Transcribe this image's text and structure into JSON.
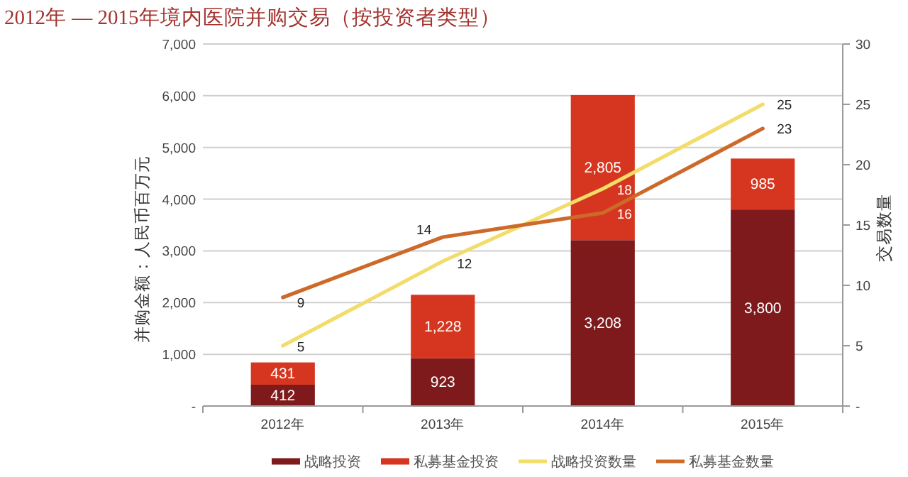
{
  "chart_data": {
    "type": "bar",
    "title": "2012年 — 2015年境内医院并购交易（按投资者类型）",
    "ylabel": "并购金额：人民币百万元",
    "y2label": "交易数量",
    "categories": [
      "2012年",
      "2013年",
      "2014年",
      "2015年"
    ],
    "stacked": true,
    "series": [
      {
        "name": "战略投资",
        "color": "#7e1a1c",
        "values": [
          412,
          923,
          3208,
          3800
        ],
        "value_labels": [
          "412",
          "923",
          "3,208",
          "3,800"
        ]
      },
      {
        "name": "私募基金投资",
        "color": "#d6361f",
        "values": [
          431,
          1228,
          2805,
          985
        ],
        "value_labels": [
          "431",
          "1,228",
          "2,805",
          "985"
        ]
      },
      {
        "name": "战略投资数量",
        "type": "line",
        "axis": "y2",
        "color": "#f2dc6a",
        "values": [
          5,
          12,
          18,
          25
        ],
        "value_labels": [
          "5",
          "12",
          "18",
          "25"
        ]
      },
      {
        "name": "私募基金数量",
        "type": "line",
        "axis": "y2",
        "color": "#cd6a2a",
        "values": [
          9,
          14,
          16,
          23
        ],
        "value_labels": [
          "9",
          "14",
          "16",
          "23"
        ]
      }
    ],
    "ylim": [
      0,
      7000
    ],
    "yticks": [
      {
        "value": 0,
        "label": "-"
      },
      {
        "value": 1000,
        "label": "1,000"
      },
      {
        "value": 2000,
        "label": "2,000"
      },
      {
        "value": 3000,
        "label": "3,000"
      },
      {
        "value": 4000,
        "label": "4,000"
      },
      {
        "value": 5000,
        "label": "5,000"
      },
      {
        "value": 6000,
        "label": "6,000"
      },
      {
        "value": 7000,
        "label": "7,000"
      }
    ],
    "y2lim": [
      0,
      30
    ],
    "y2ticks": [
      {
        "value": 0,
        "label": "-"
      },
      5,
      10,
      15,
      20,
      25,
      30
    ],
    "grid": "y",
    "legend": "bottom"
  }
}
